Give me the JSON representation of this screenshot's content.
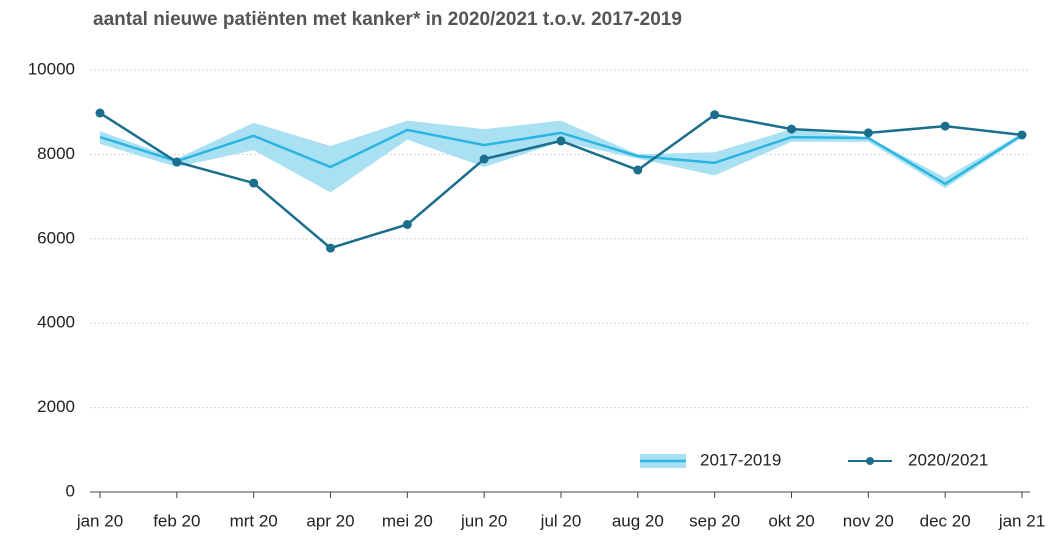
{
  "chart_data": {
    "type": "line",
    "title": "aantal nieuwe patiënten met kanker* in 2020/2021 t.o.v. 2017-2019",
    "categories": [
      "jan 20",
      "feb 20",
      "mrt 20",
      "apr 20",
      "mei 20",
      "jun 20",
      "jul 20",
      "aug 20",
      "sep 20",
      "okt 20",
      "nov 20",
      "dec 20",
      "jan 21"
    ],
    "series": [
      {
        "name": "2017-2019",
        "color": "#2bb5e0",
        "band_color": "#a9e1f3",
        "values": [
          8410,
          7840,
          8440,
          7700,
          8580,
          8220,
          8510,
          7960,
          7800,
          8410,
          8390,
          7300,
          8460
        ],
        "lower": [
          8250,
          7700,
          8100,
          7100,
          8350,
          7700,
          8300,
          7900,
          7500,
          8300,
          8300,
          7200,
          8400
        ],
        "upper": [
          8550,
          7900,
          8750,
          8200,
          8800,
          8600,
          8800,
          8000,
          8050,
          8600,
          8400,
          7450,
          8500
        ]
      },
      {
        "name": "2020/2021",
        "color": "#1b6f8c",
        "values": [
          8980,
          7820,
          7320,
          5780,
          6340,
          7890,
          8320,
          7630,
          8940,
          8600,
          8510,
          8670,
          8460
        ]
      }
    ],
    "ylim": [
      0,
      10000
    ],
    "yticks": [
      0,
      2000,
      4000,
      6000,
      8000,
      10000
    ],
    "grid": true,
    "legend": "bottom-right"
  }
}
